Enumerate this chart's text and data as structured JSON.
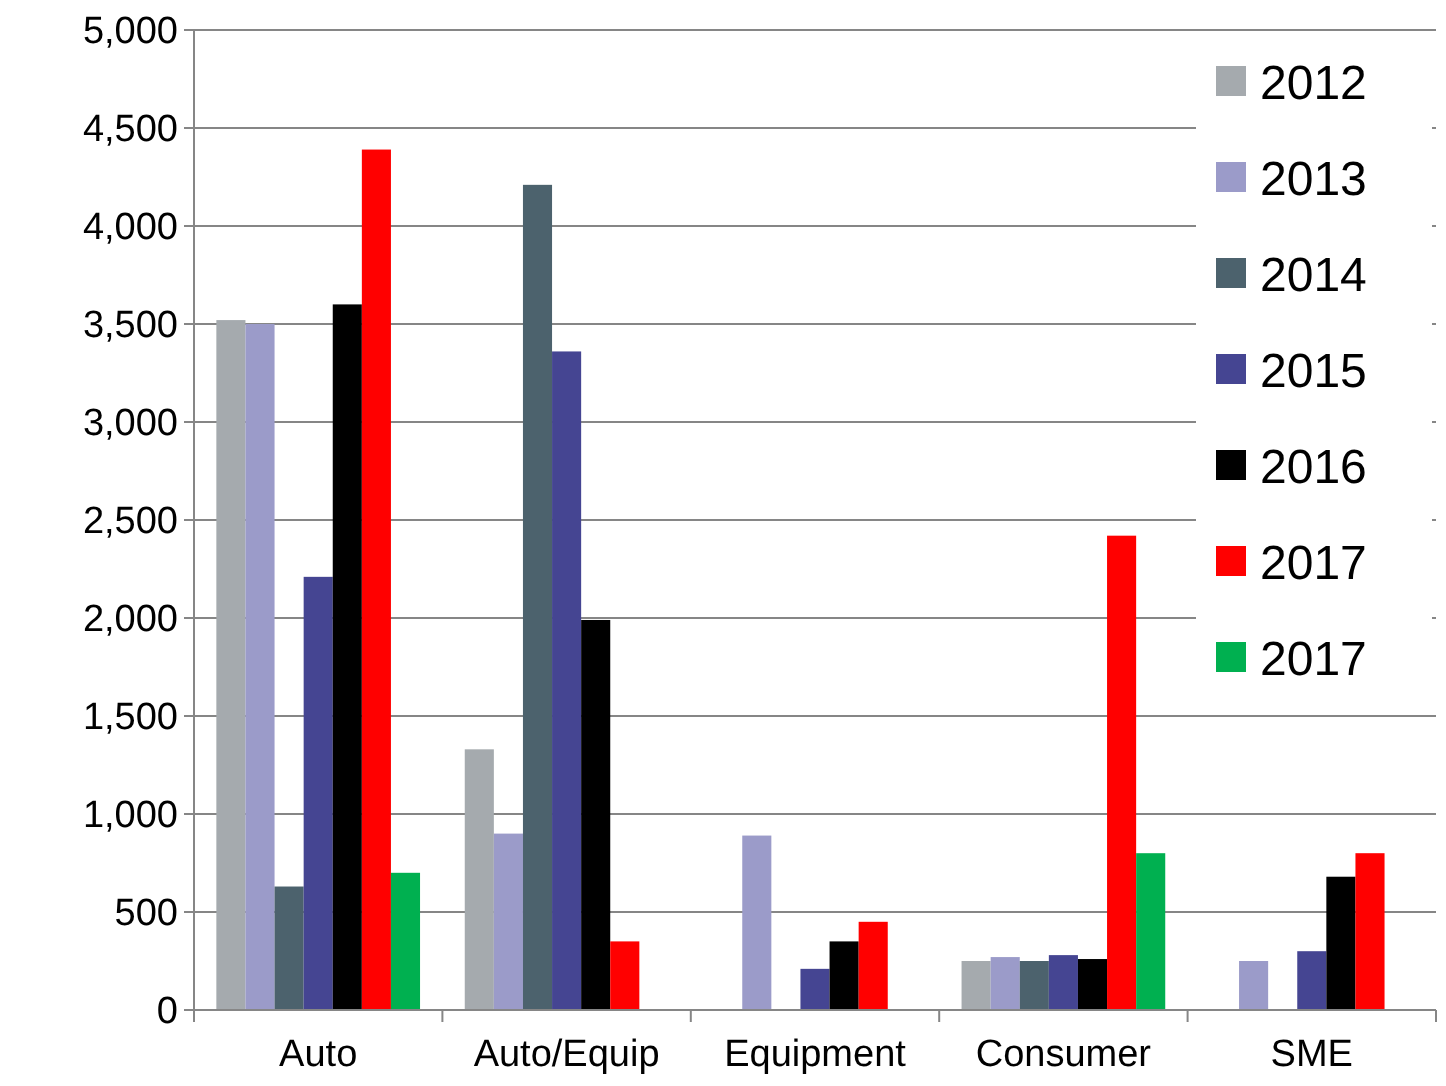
{
  "chart_data": {
    "type": "bar",
    "categories": [
      "Auto",
      "Auto/Equip",
      "Equipment",
      "Consumer",
      "SME"
    ],
    "series": [
      {
        "name": "2012",
        "color": "#a5aaae",
        "values": [
          3520,
          1330,
          null,
          250,
          null
        ]
      },
      {
        "name": "2013",
        "color": "#9b9bc9",
        "values": [
          3500,
          900,
          890,
          270,
          250
        ]
      },
      {
        "name": "2014",
        "color": "#4c626d",
        "values": [
          630,
          4210,
          null,
          250,
          null
        ]
      },
      {
        "name": "2015",
        "color": "#454592",
        "values": [
          2210,
          3360,
          210,
          280,
          300
        ]
      },
      {
        "name": "2016",
        "color": "#000000",
        "values": [
          3600,
          1990,
          350,
          260,
          680
        ]
      },
      {
        "name": "2017",
        "color": "#ff0000",
        "values": [
          4390,
          350,
          450,
          2420,
          800
        ]
      },
      {
        "name": "2017",
        "color": "#00b050",
        "values": [
          700,
          null,
          null,
          800,
          null
        ]
      }
    ],
    "ylim": [
      0,
      5000
    ],
    "yticks": [
      {
        "value": 0,
        "label": "0"
      },
      {
        "value": 500,
        "label": "500"
      },
      {
        "value": 1000,
        "label": "1,000"
      },
      {
        "value": 1500,
        "label": "1,500"
      },
      {
        "value": 2000,
        "label": "2,000"
      },
      {
        "value": 2500,
        "label": "2,500"
      },
      {
        "value": 3000,
        "label": "3,000"
      },
      {
        "value": 3500,
        "label": "3,500"
      },
      {
        "value": 4000,
        "label": "4,000"
      },
      {
        "value": 4500,
        "label": "4,500"
      },
      {
        "value": 5000,
        "label": "5,000"
      }
    ],
    "grid": "y",
    "legend": "top right"
  }
}
